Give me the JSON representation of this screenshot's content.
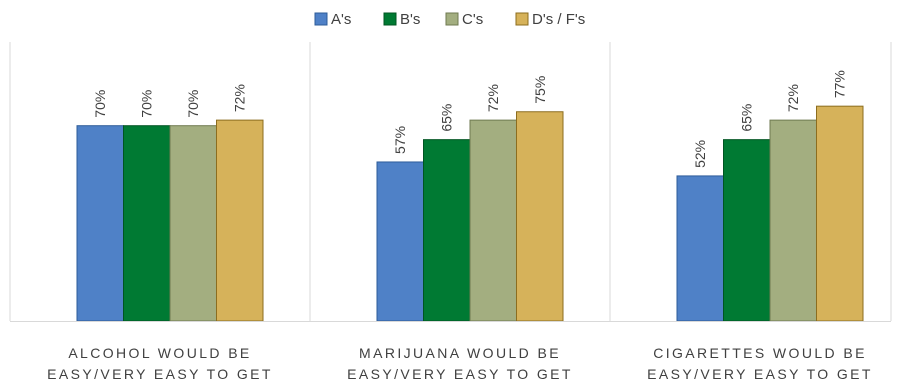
{
  "chart_data": {
    "type": "bar",
    "categories": [
      [
        "ALCOHOL WOULD BE",
        "EASY/VERY EASY TO GET"
      ],
      [
        "MARIJUANA WOULD BE",
        "EASY/VERY EASY TO GET"
      ],
      [
        "CIGARETTES WOULD BE",
        "EASY/VERY EASY TO GET"
      ]
    ],
    "series": [
      {
        "name": "A's",
        "values": [
          70,
          57,
          52
        ],
        "labels": [
          "70%",
          "57%",
          "52%"
        ],
        "color": "#4F81C7",
        "stroke": "#2E5C99"
      },
      {
        "name": "B's",
        "values": [
          70,
          65,
          65
        ],
        "labels": [
          "70%",
          "65%",
          "65%"
        ],
        "color": "#007A33",
        "stroke": "#005522"
      },
      {
        "name": "C's",
        "values": [
          70,
          72,
          72
        ],
        "labels": [
          "70%",
          "72%",
          "72%"
        ],
        "color": "#A3AE80",
        "stroke": "#6F7A50"
      },
      {
        "name": "D's / F's",
        "values": [
          72,
          75,
          77
        ],
        "labels": [
          "72%",
          "75%",
          "77%"
        ],
        "color": "#D6B25A",
        "stroke": "#8C6D1F"
      }
    ],
    "ylim": [
      0,
      100
    ],
    "grid": false,
    "legend_position": "top-center",
    "panel_dividers": true
  }
}
